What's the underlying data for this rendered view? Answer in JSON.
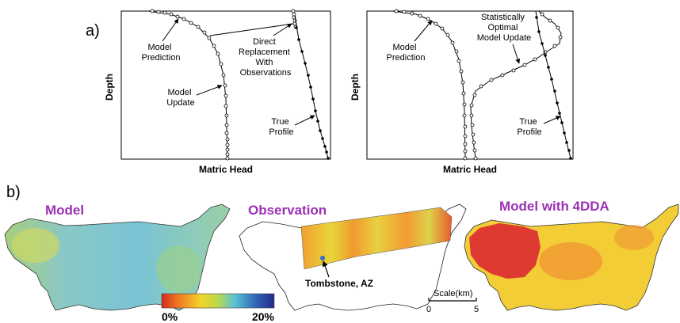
{
  "panel_a": {
    "label": "a)",
    "left_plot": {
      "y_label": "Depth",
      "x_label": "Matric Head",
      "annotations": {
        "model_prediction": [
          "Model",
          "Prediction"
        ],
        "model_update": [
          "Model",
          "Update"
        ],
        "direct_replacement": [
          "Direct",
          "Replacement",
          "With",
          "Observations"
        ],
        "true_profile": [
          "True",
          "Profile"
        ]
      }
    },
    "right_plot": {
      "y_label": "Depth",
      "x_label": "Matric Head",
      "annotations": {
        "model_prediction": [
          "Model",
          "Prediction"
        ],
        "optimal_update": [
          "Statistically",
          "Optimal",
          "Model Update"
        ],
        "true_profile": [
          "True",
          "Profile"
        ]
      }
    }
  },
  "panel_b": {
    "label": "b)",
    "maps": {
      "model": {
        "title": "Model"
      },
      "observation": {
        "title": "Observation",
        "site_label": "Tombstone, AZ"
      },
      "model_4dda": {
        "title": "Model with 4DDA"
      }
    },
    "colorbar": {
      "min_label": "0%",
      "max_label": "20%",
      "colors": [
        "#d42a1e",
        "#f07a24",
        "#f2d52a",
        "#b9d84c",
        "#58c3d6",
        "#2f5fb0",
        "#252a8a"
      ]
    },
    "scale_bar": {
      "title": "Scale(km)",
      "start": "0",
      "end": "5"
    }
  },
  "colors": {
    "title_purple": "#9b30b5",
    "model_blue": "#7ec6d4",
    "model_4dda_red": "#df3a32",
    "model_4dda_yellow": "#f2cd36"
  }
}
